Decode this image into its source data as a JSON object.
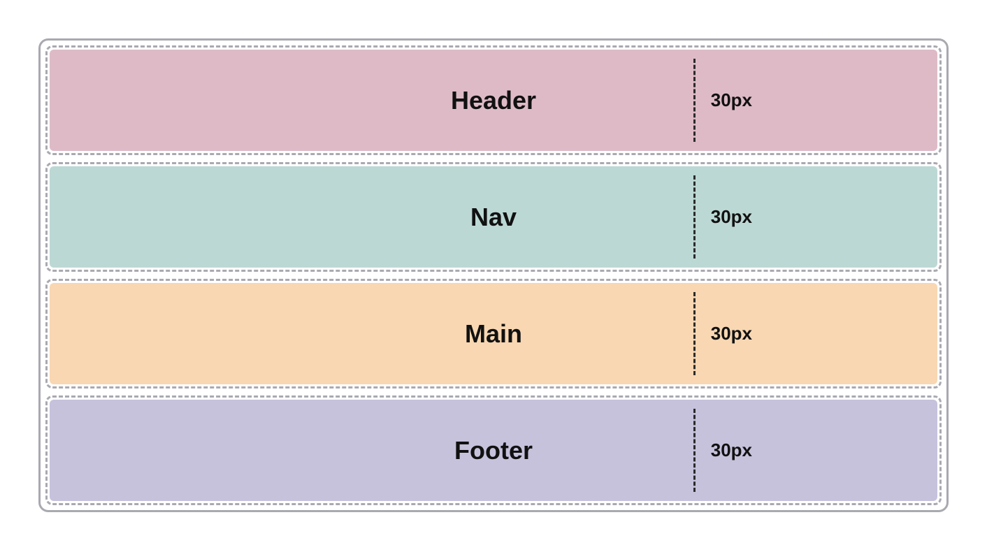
{
  "diagram": {
    "type": "layout-regions",
    "container_border_color": "#a9a9b0",
    "container_border_radius": 14,
    "container_padding": 7,
    "region_wrap_dash_color": "#a9a9b0",
    "region_wrap_border_radius": 10,
    "region_border_radius": 6,
    "region_height": 145,
    "gap_between_regions": 10,
    "text_color": "#111111",
    "label_fontsize": 36,
    "label_fontweight": 800,
    "size_fontsize": 26,
    "size_fontweight": 700,
    "vline_color": "#2a2a2a",
    "vline_left_percent": 72.5,
    "regions": [
      {
        "label": "Header",
        "size": "30px",
        "fill": "#debac7"
      },
      {
        "label": "Nav",
        "size": "30px",
        "fill": "#bcd8d4"
      },
      {
        "label": "Main",
        "size": "30px",
        "fill": "#f8d7b2"
      },
      {
        "label": "Footer",
        "size": "30px",
        "fill": "#c6c2dc"
      }
    ]
  }
}
